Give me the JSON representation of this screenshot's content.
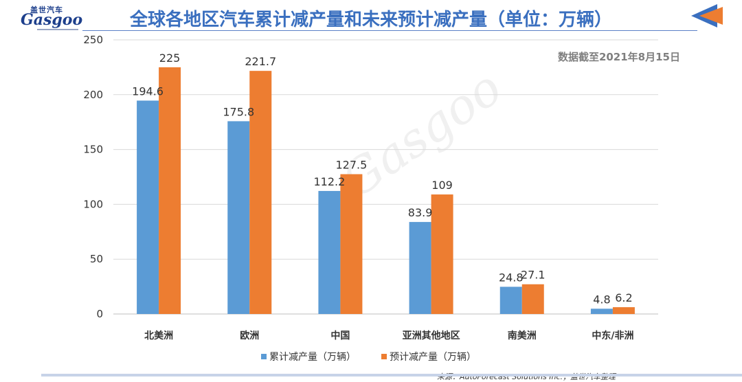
{
  "header": {
    "logo_cn": "盖世汽车",
    "logo_en": "Gasgoo",
    "title": "全球各地区汽车累计减产量和未来预计减产量（单位：万辆）",
    "date_note": "数据截至2021年8月15日",
    "source": "来源：AutoForecast Solutions Inc.；盖世汽车整理"
  },
  "colors": {
    "cumulative": "#5b9bd5",
    "forecast": "#ed7d31",
    "title": "#3a6fbf"
  },
  "chart_data": {
    "type": "bar",
    "categories": [
      "北美洲",
      "欧洲",
      "中国",
      "亚洲其他地区",
      "南美洲",
      "中东/非洲"
    ],
    "series": [
      {
        "name": "累计减产量（万辆）",
        "values": [
          194.6,
          175.8,
          112.2,
          83.9,
          24.8,
          4.8
        ],
        "labels": [
          "194.6",
          "175.8",
          "112.2",
          "83.9",
          "24.8",
          "4.8"
        ]
      },
      {
        "name": "预计减产量（万辆）",
        "values": [
          225,
          221.7,
          127.5,
          109,
          27.1,
          6.2
        ],
        "labels": [
          "225",
          "221.7",
          "127.5",
          "109",
          "27.1",
          "6.2"
        ]
      }
    ],
    "ylim": [
      0,
      250
    ],
    "yticks": [
      0,
      50,
      100,
      150,
      200,
      250
    ],
    "grid": true,
    "legend": "bottom"
  }
}
